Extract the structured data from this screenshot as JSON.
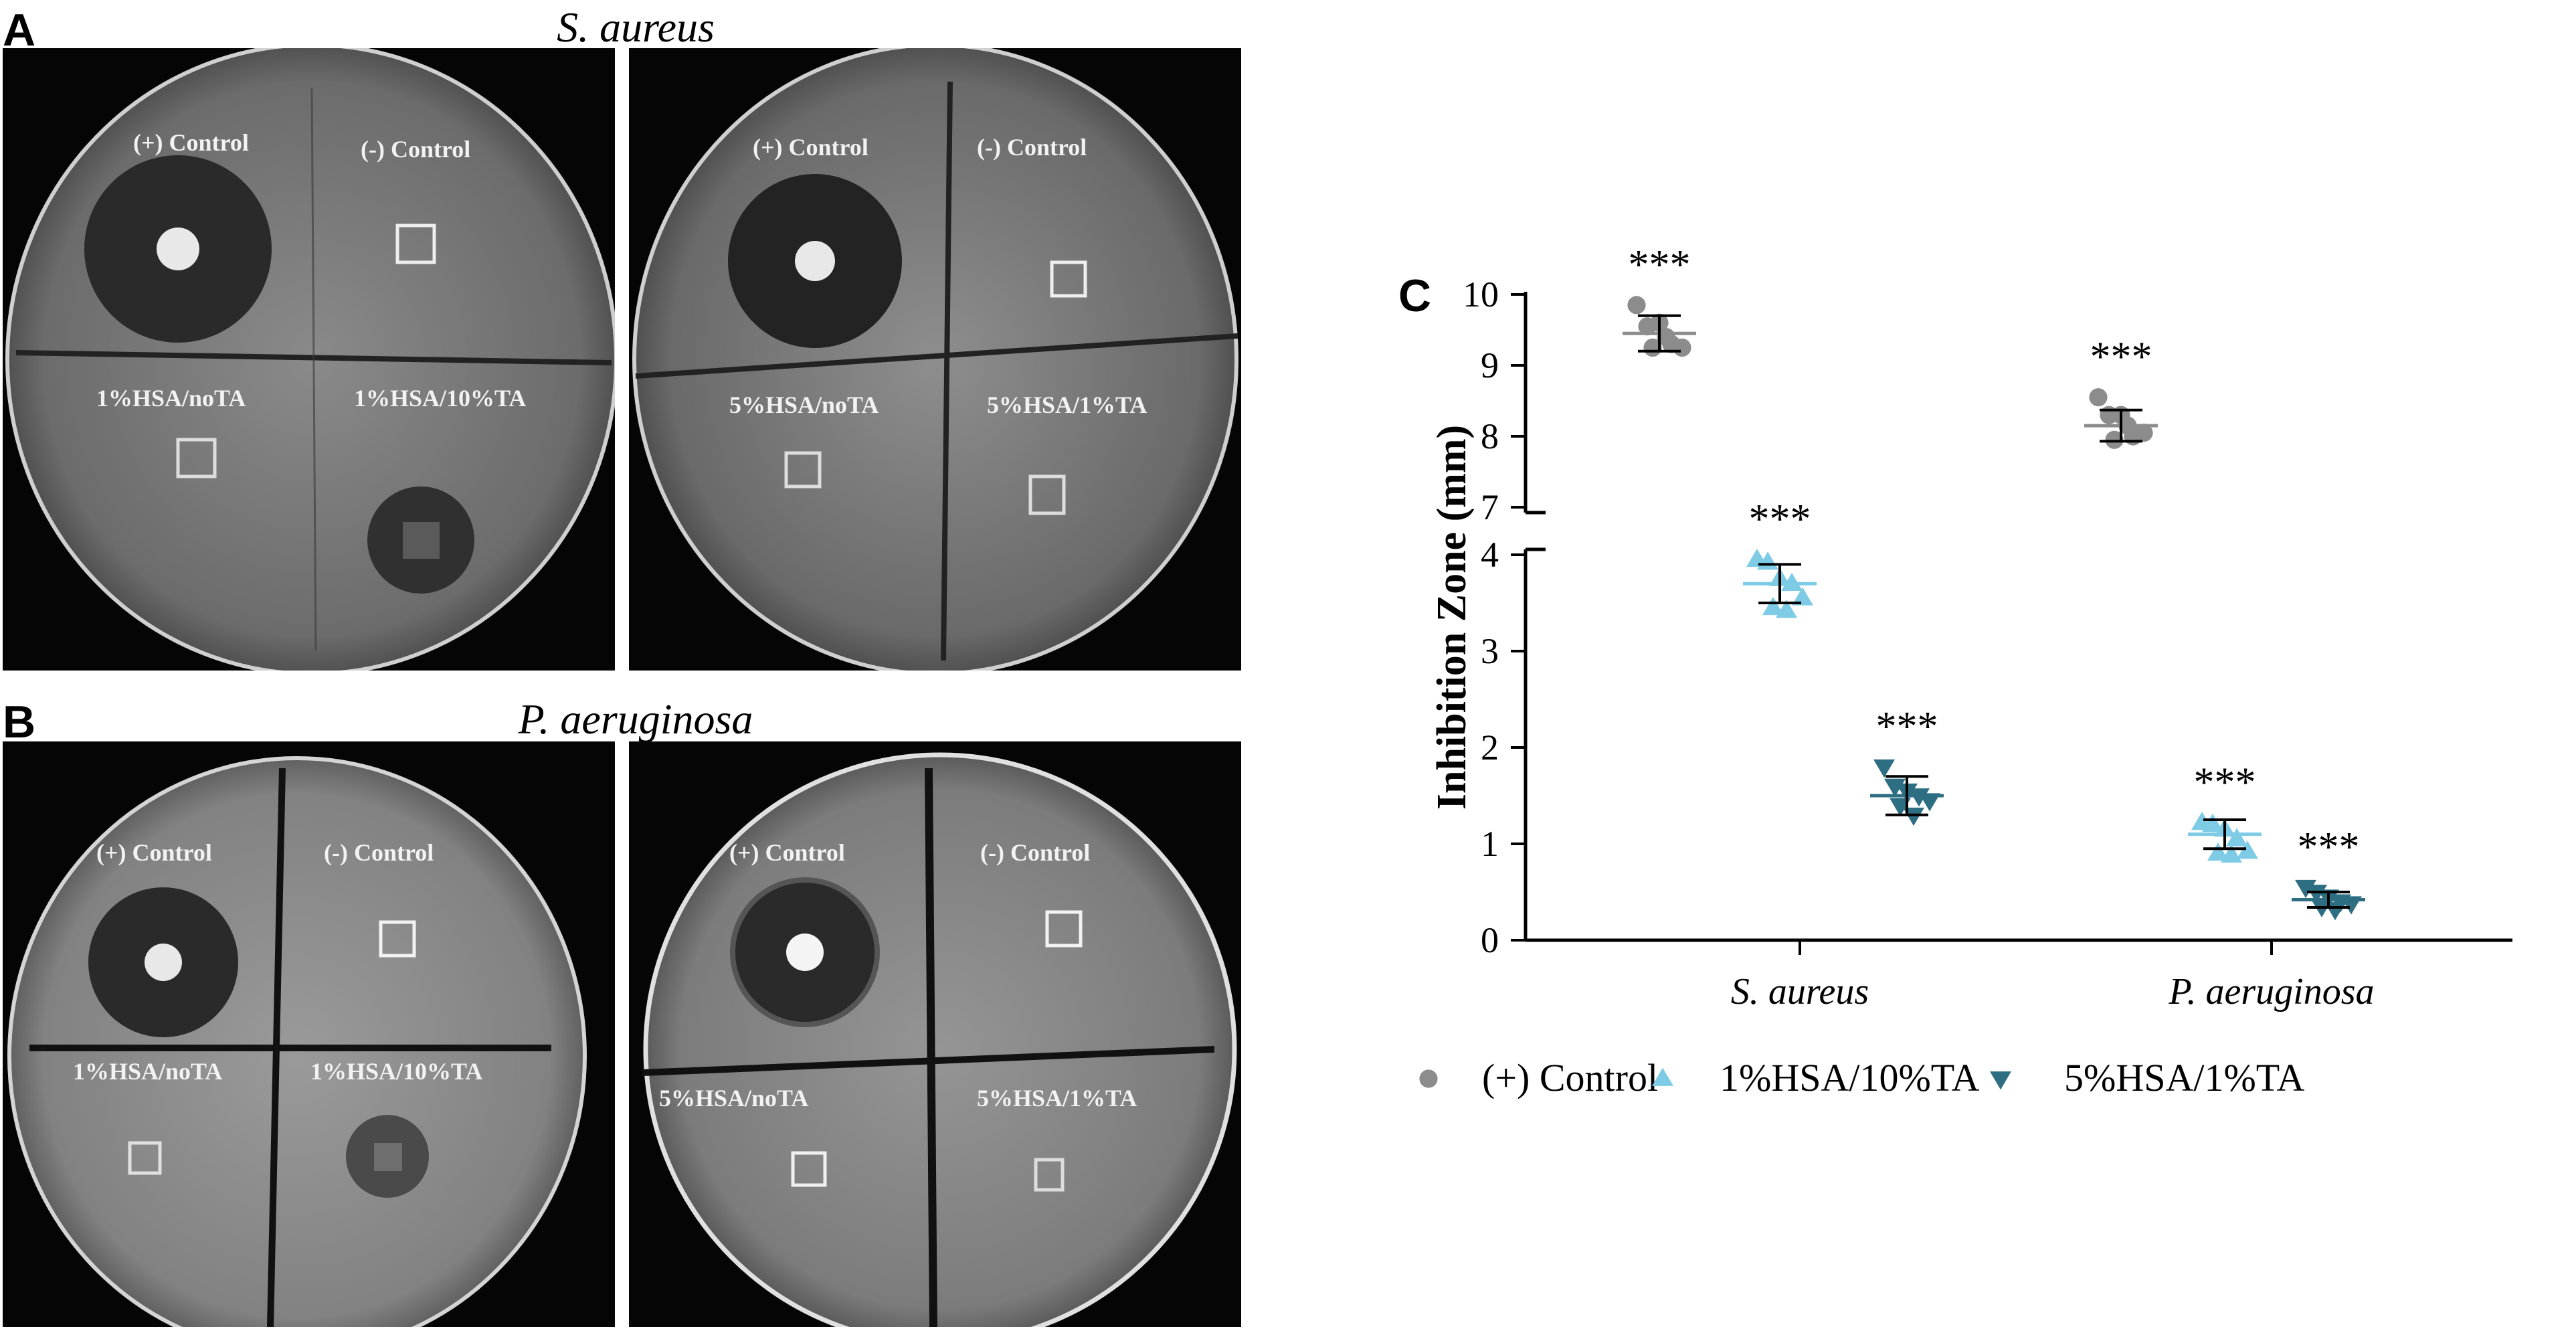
{
  "panels": {
    "a": {
      "letter": "A",
      "title": "S. aureus",
      "plate1": {
        "pos_control": "(+) Control",
        "neg_control": "(-) Control",
        "q3": "1%HSA/noTA",
        "q4": "1%HSA/10%TA"
      },
      "plate2": {
        "pos_control": "(+) Control",
        "neg_control": "(-) Control",
        "q3": "5%HSA/noTA",
        "q4": "5%HSA/1%TA"
      }
    },
    "b": {
      "letter": "B",
      "title": "P. aeruginosa",
      "plate1": {
        "pos_control": "(+) Control",
        "neg_control": "(-) Control",
        "q3": "1%HSA/noTA",
        "q4": "1%HSA/10%TA"
      },
      "plate2": {
        "pos_control": "(+) Control",
        "neg_control": "(-) Control",
        "q3": "5%HSA/noTA",
        "q4": "5%HSA/1%TA"
      }
    },
    "c": {
      "letter": "C"
    }
  },
  "chart_data": {
    "type": "scatter",
    "ylabel": "Inhibition Zone (mm)",
    "categories": [
      "S. aureus",
      "P. aeruginosa"
    ],
    "y_axis_broken": true,
    "y_segments": [
      {
        "range": [
          0,
          4
        ],
        "ticks": [
          0,
          1,
          2,
          3,
          4
        ]
      },
      {
        "range": [
          7,
          10
        ],
        "ticks": [
          7,
          8,
          9,
          10
        ]
      }
    ],
    "significance_label": "***",
    "colors": {
      "control": "#8c8c8c",
      "hsa10": "#7ecbe6",
      "hsa1": "#2d6e83"
    },
    "series": [
      {
        "name": "(+) Control",
        "marker": "circle",
        "color": "#8c8c8c",
        "groups": [
          {
            "category": "S. aureus",
            "mean": 9.45,
            "sd": 0.25,
            "points": [
              9.85,
              9.55,
              9.6,
              9.3,
              9.25,
              9.25,
              9.4
            ]
          },
          {
            "category": "P. aeruginosa",
            "mean": 8.15,
            "sd": 0.22,
            "points": [
              8.55,
              8.3,
              8.3,
              8.0,
              8.05,
              7.95,
              8.15
            ]
          }
        ]
      },
      {
        "name": "1%HSA/10%TA",
        "marker": "triangle-up",
        "color": "#7ecbe6",
        "groups": [
          {
            "category": "S. aureus",
            "mean": 3.7,
            "sd": 0.2,
            "points": [
              3.95,
              3.92,
              3.75,
              3.7,
              3.55,
              3.45,
              3.42
            ]
          },
          {
            "category": "P. aeruginosa",
            "mean": 1.1,
            "sd": 0.15,
            "points": [
              1.22,
              1.2,
              1.15,
              1.05,
              0.92,
              0.9,
              0.88
            ]
          }
        ]
      },
      {
        "name": "5%HSA/1%TA",
        "marker": "triangle-down",
        "color": "#2d6e83",
        "groups": [
          {
            "category": "S. aureus",
            "mean": 1.5,
            "sd": 0.2,
            "points": [
              1.8,
              1.6,
              1.55,
              1.5,
              1.45,
              1.4,
              1.3
            ]
          },
          {
            "category": "P. aeruginosa",
            "mean": 0.42,
            "sd": 0.08,
            "points": [
              0.55,
              0.5,
              0.45,
              0.4,
              0.38,
              0.35,
              0.32
            ]
          }
        ]
      }
    ],
    "legend_position": "bottom"
  }
}
